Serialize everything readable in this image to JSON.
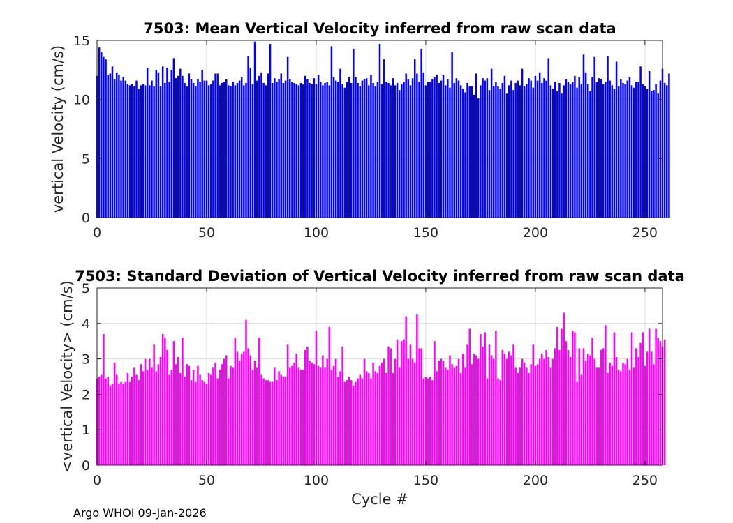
{
  "chart_data": [
    {
      "type": "bar",
      "title": "7503: Mean Vertical Velocity inferred from raw scan data",
      "xlabel": "",
      "ylabel": "vertical Velocity (cm/s)",
      "xlim": [
        0,
        258
      ],
      "ylim": [
        0,
        15
      ],
      "xticks": [
        0,
        50,
        100,
        150,
        200,
        250
      ],
      "yticks": [
        0,
        5,
        10,
        15
      ],
      "grid": true,
      "color": "#0000ff",
      "x_start": 0,
      "values": [
        12.0,
        14.4,
        14.0,
        13.6,
        13.4,
        12.1,
        12.2,
        12.8,
        11.7,
        12.3,
        12.1,
        11.6,
        11.9,
        11.6,
        11.3,
        11.2,
        11.3,
        11.1,
        11.6,
        10.9,
        11.2,
        11.3,
        11.2,
        12.7,
        11.2,
        11.6,
        11.1,
        12.5,
        12.3,
        11.1,
        12.8,
        11.4,
        12.7,
        11.5,
        12.5,
        13.5,
        11.8,
        12.0,
        12.6,
        12.0,
        11.4,
        11.1,
        12.2,
        11.7,
        11.4,
        11.1,
        11.7,
        11.5,
        12.5,
        11.6,
        11.6,
        11.2,
        11.3,
        11.6,
        12.2,
        12.2,
        11.2,
        11.4,
        11.5,
        11.7,
        11.2,
        11.1,
        11.5,
        11.2,
        11.4,
        11.6,
        11.9,
        11.2,
        11.4,
        13.7,
        12.7,
        11.3,
        14.9,
        11.6,
        12.0,
        12.3,
        11.4,
        11.2,
        12.2,
        14.7,
        11.4,
        11.8,
        11.5,
        11.7,
        12.2,
        11.4,
        11.6,
        13.6,
        11.7,
        11.5,
        11.4,
        11.3,
        11.2,
        11.4,
        11.3,
        12.0,
        11.7,
        11.4,
        11.3,
        11.8,
        11.3,
        12.1,
        11.5,
        11.2,
        11.4,
        11.5,
        11.2,
        14.5,
        11.9,
        11.6,
        11.5,
        12.6,
        11.3,
        11.0,
        11.5,
        11.9,
        11.4,
        14.3,
        11.9,
        11.4,
        11.1,
        11.6,
        11.7,
        11.8,
        11.2,
        12.1,
        11.4,
        11.1,
        11.5,
        14.7,
        11.3,
        13.4,
        11.5,
        11.4,
        11.2,
        11.8,
        11.2,
        11.4,
        10.8,
        11.3,
        11.5,
        12.2,
        11.7,
        11.2,
        11.8,
        13.4,
        12.2,
        11.5,
        14.3,
        12.3,
        11.2,
        11.5,
        11.5,
        11.7,
        11.9,
        12.1,
        11.4,
        11.6,
        12.1,
        11.2,
        11.7,
        11.0,
        14.0,
        11.4,
        11.8,
        11.6,
        11.2,
        10.9,
        10.6,
        11.4,
        11.1,
        11.1,
        10.4,
        12.2,
        10.1,
        11.2,
        11.8,
        11.6,
        11.8,
        10.8,
        12.6,
        11.1,
        11.5,
        11.1,
        10.9,
        11.4,
        12.0,
        10.5,
        11.2,
        11.6,
        10.8,
        11.4,
        11.6,
        11.2,
        12.6,
        11.1,
        11.3,
        11.8,
        11.6,
        11.0,
        12.0,
        11.6,
        12.3,
        11.4,
        11.8,
        11.6,
        13.5,
        11.2,
        10.9,
        11.5,
        10.7,
        11.4,
        10.5,
        11.2,
        11.7,
        11.5,
        11.3,
        11.5,
        12.0,
        11.0,
        11.9,
        11.3,
        13.8,
        12.3,
        11.3,
        10.7,
        11.9,
        13.6,
        11.5,
        11.8,
        11.7,
        11.3,
        11.5,
        13.7,
        11.6,
        11.2,
        10.9,
        13.2,
        11.1,
        11.7,
        11.4,
        11.3,
        11.6,
        11.9,
        11.2,
        11.0,
        11.5,
        11.5,
        12.8,
        11.3,
        11.1,
        10.9,
        12.4,
        10.7,
        10.8,
        11.3,
        10.5,
        11.6,
        12.6,
        11.4,
        11.2,
        12.2
      ]
    },
    {
      "type": "bar",
      "title": "7503: Standard Deviation of Vertical Velocity inferred from raw scan data",
      "xlabel": "Cycle #",
      "ylabel": "<vertical Velocity> (cm/s)",
      "xlim": [
        0,
        258
      ],
      "ylim": [
        0,
        5
      ],
      "xticks": [
        0,
        50,
        100,
        150,
        200,
        250
      ],
      "yticks": [
        0,
        1,
        2,
        3,
        4,
        5
      ],
      "grid": true,
      "color": "#ff00ff",
      "x_start": 0,
      "values": [
        2.45,
        2.5,
        2.55,
        3.7,
        2.45,
        2.5,
        2.25,
        2.3,
        2.9,
        2.55,
        2.3,
        2.35,
        2.3,
        2.35,
        2.6,
        2.35,
        2.5,
        2.75,
        2.55,
        2.4,
        2.85,
        2.65,
        3.0,
        2.7,
        3.0,
        2.75,
        3.4,
        2.65,
        2.85,
        3.05,
        3.7,
        3.6,
        3.25,
        2.55,
        2.7,
        3.5,
        2.85,
        3.05,
        2.6,
        3.6,
        2.5,
        2.85,
        2.8,
        2.4,
        2.7,
        2.35,
        2.8,
        2.55,
        2.4,
        2.35,
        2.3,
        2.6,
        2.55,
        2.75,
        2.9,
        2.45,
        2.7,
        2.85,
        3.0,
        3.1,
        2.45,
        2.8,
        2.75,
        3.6,
        3.2,
        2.95,
        3.15,
        3.2,
        4.1,
        3.3,
        3.1,
        2.7,
        2.95,
        2.75,
        3.6,
        2.55,
        2.45,
        2.4,
        2.4,
        2.35,
        2.35,
        2.75,
        2.4,
        2.65,
        2.55,
        2.5,
        2.5,
        3.4,
        2.75,
        2.8,
        2.9,
        3.15,
        2.75,
        2.7,
        2.7,
        3.25,
        3.35,
        2.95,
        2.9,
        2.85,
        3.8,
        2.8,
        2.75,
        3.1,
        2.75,
        3.0,
        3.9,
        2.7,
        2.8,
        3.0,
        2.5,
        2.65,
        3.35,
        2.35,
        2.4,
        2.5,
        2.4,
        2.25,
        2.35,
        2.45,
        2.55,
        2.45,
        3.0,
        2.65,
        2.6,
        2.45,
        2.9,
        2.65,
        2.6,
        2.8,
        2.9,
        3.0,
        2.6,
        3.35,
        3.3,
        2.6,
        3.0,
        3.55,
        2.75,
        3.5,
        3.55,
        4.2,
        3.0,
        3.4,
        3.0,
        2.9,
        4.25,
        3.3,
        3.3,
        2.45,
        2.5,
        2.45,
        2.5,
        2.4,
        3.5,
        2.65,
        2.95,
        3.0,
        2.95,
        2.75,
        2.7,
        3.1,
        2.85,
        2.75,
        2.8,
        3.0,
        2.6,
        3.15,
        2.75,
        3.4,
        3.85,
        2.85,
        3.15,
        3.1,
        3.0,
        3.7,
        3.35,
        3.75,
        2.45,
        3.4,
        3.1,
        3.0,
        3.8,
        2.45,
        2.4,
        3.25,
        3.15,
        3.0,
        3.2,
        3.1,
        3.4,
        2.75,
        2.6,
        2.75,
        3.0,
        2.9,
        2.75,
        2.6,
        2.85,
        3.4,
        2.8,
        2.85,
        3.0,
        3.15,
        3.0,
        3.25,
        3.05,
        2.75,
        3.0,
        3.3,
        3.9,
        3.25,
        3.85,
        4.3,
        3.5,
        3.25,
        3.05,
        3.8,
        3.75,
        2.35,
        3.3,
        2.55,
        3.3,
        2.95,
        3.15,
        3.1,
        3.6,
        3.0,
        2.75,
        2.75,
        3.25,
        3.3,
        3.95,
        2.6,
        2.9,
        2.8,
        3.75,
        3.05,
        2.7,
        2.65,
        2.9,
        2.85,
        3.0,
        2.7,
        3.75,
        2.75,
        3.3,
        3.05,
        3.45,
        3.75,
        2.8,
        3.2,
        3.85,
        3.2,
        2.85,
        3.85,
        3.6,
        3.5,
        3.35,
        3.55
      ]
    }
  ],
  "footer": "Argo WHOI 09-Jan-2026"
}
